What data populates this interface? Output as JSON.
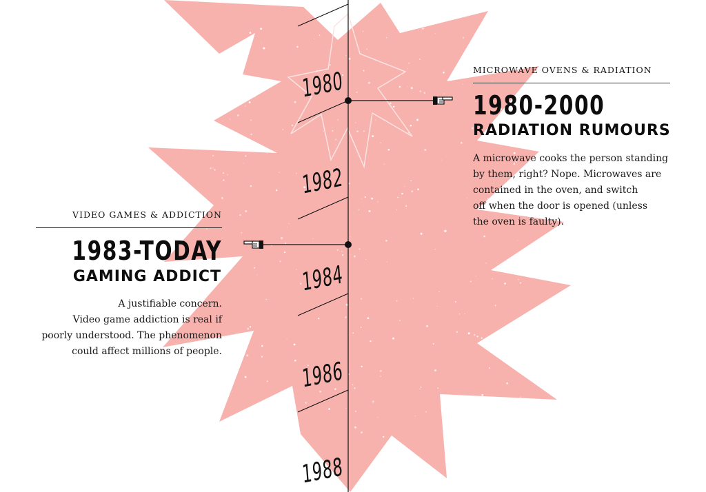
{
  "timeline": {
    "years": [
      "1980",
      "1982",
      "1984",
      "1986",
      "1988"
    ]
  },
  "entries": {
    "right": {
      "kicker": "MICROWAVE OVENS & RADIATION",
      "years": "1980-2000",
      "title": "RADIATION RUMOURS",
      "body": [
        "A microwave cooks the person standing",
        "by them, right? Nope. Microwaves are",
        "contained in the oven, and switch",
        "off when the door is opened (unless",
        "the oven is faulty)."
      ]
    },
    "left": {
      "kicker": "VIDEO GAMES & ADDICTION",
      "years": "1983-TODAY",
      "title": "GAMING ADDICT",
      "body": [
        "A justifiable concern.",
        "Video game addiction is real if",
        "poorly understood. The phenomenon",
        "could affect millions of people."
      ]
    }
  },
  "icons": {
    "right_pointer": "pointing-hand-left-icon",
    "left_pointer": "pointing-hand-right-icon"
  },
  "colors": {
    "burst": "#f7b2ae",
    "ink": "#111111",
    "speckle": "#ffffff"
  }
}
